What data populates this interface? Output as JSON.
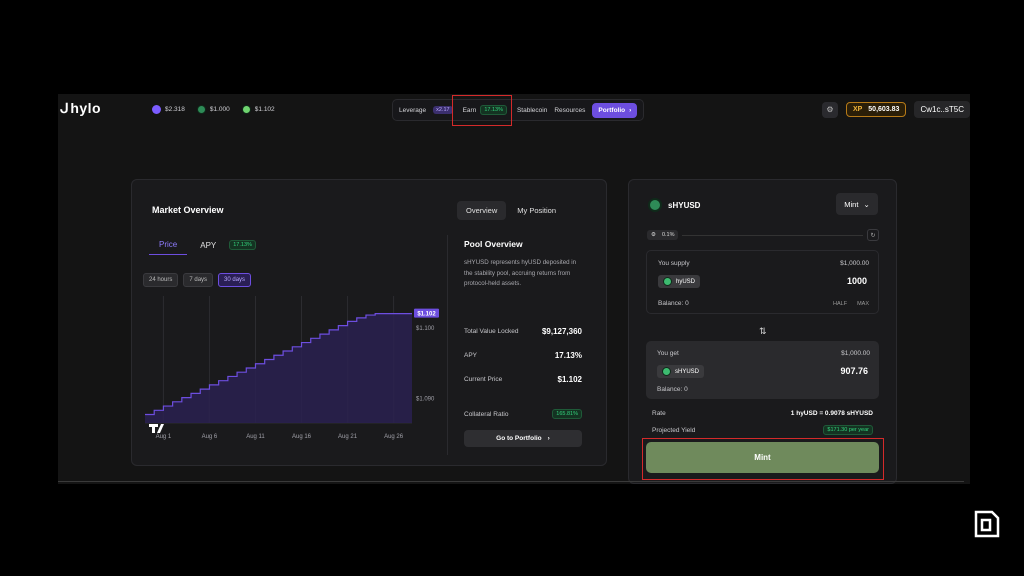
{
  "header": {
    "logo": "hylo",
    "tokens": [
      {
        "icon": "purple-token-icon",
        "value": "$2.318",
        "color": "#7b5cff"
      },
      {
        "icon": "green-token-icon",
        "value": "$1.000",
        "color": "#2e8b57"
      },
      {
        "icon": "lime-token-icon",
        "value": "$1.102",
        "color": "#6fd46f"
      }
    ],
    "nav": {
      "leverage": "Leverage",
      "leverage_badge": "x2.17",
      "earn": "Earn",
      "earn_badge": "17.13%",
      "stablecoin": "Stablecoin",
      "resources": "Resources",
      "portfolio": "Portfolio"
    },
    "xp_label": "XP",
    "xp_value": "50,603.83",
    "wallet": "Cw1c..sT5C"
  },
  "market": {
    "title": "Market Overview",
    "view_tabs": [
      "Overview",
      "My Position"
    ],
    "sub_tabs": {
      "price": "Price",
      "apy": "APY",
      "apy_badge": "17.13%"
    },
    "ranges": [
      "24 hours",
      "7 days",
      "30 days"
    ],
    "active_range": "30 days"
  },
  "chart_data": {
    "type": "area",
    "step": true,
    "x": [
      "Jul 30",
      "Jul 31",
      "Aug 1",
      "Aug 2",
      "Aug 3",
      "Aug 4",
      "Aug 5",
      "Aug 6",
      "Aug 7",
      "Aug 8",
      "Aug 9",
      "Aug 10",
      "Aug 11",
      "Aug 12",
      "Aug 13",
      "Aug 14",
      "Aug 15",
      "Aug 16",
      "Aug 17",
      "Aug 18",
      "Aug 19",
      "Aug 20",
      "Aug 21",
      "Aug 22",
      "Aug 23",
      "Aug 24",
      "Aug 25",
      "Aug 26",
      "Aug 27",
      "Aug 28"
    ],
    "values": [
      1.0877,
      1.0883,
      1.0889,
      1.0895,
      1.0901,
      1.0907,
      1.0913,
      1.0919,
      1.0925,
      1.0931,
      1.0937,
      1.0943,
      1.0949,
      1.0955,
      1.0961,
      1.0967,
      1.0973,
      1.0979,
      1.0985,
      1.0991,
      1.0997,
      1.1003,
      1.1009,
      1.1014,
      1.1018,
      1.102,
      1.102,
      1.102,
      1.102,
      1.102
    ],
    "x_ticks": [
      "Aug 1",
      "Aug 6",
      "Aug 11",
      "Aug 16",
      "Aug 21",
      "Aug 26"
    ],
    "y_ticks": [
      "$1.100",
      "$1.090"
    ],
    "y_tick_values": [
      1.1,
      1.09
    ],
    "current_label": "$1.102",
    "ylim": [
      1.0865,
      1.1045
    ],
    "line_color": "#6d4ee0"
  },
  "pool": {
    "title": "Pool Overview",
    "description": "sHYUSD represents hyUSD deposited in the stability pool, accruing returns from protocol-held assets.",
    "tvl_label": "Total Value Locked",
    "tvl": "$9,127,360",
    "apy_label": "APY",
    "apy": "17.13%",
    "price_label": "Current Price",
    "price": "$1.102",
    "collateral_label": "Collateral Ratio",
    "collateral": "165.81%",
    "goto": "Go to Portfolio"
  },
  "mint_panel": {
    "token": "sHYUSD",
    "mode": "Mint",
    "slippage": "0.1%",
    "supply": {
      "label": "You supply",
      "usd": "$1,000.00",
      "token": "hyUSD",
      "amount": "1000",
      "balance": "Balance: 0",
      "half": "HALF",
      "max": "MAX"
    },
    "get": {
      "label": "You get",
      "usd": "$1,000.00",
      "token": "sHYUSD",
      "amount": "907.76",
      "balance": "Balance: 0"
    },
    "rate_label": "Rate",
    "rate": "1 hyUSD = 0.9078 sHYUSD",
    "yield_label": "Projected Yield",
    "yield": "$171.30 per year",
    "button": "Mint"
  }
}
